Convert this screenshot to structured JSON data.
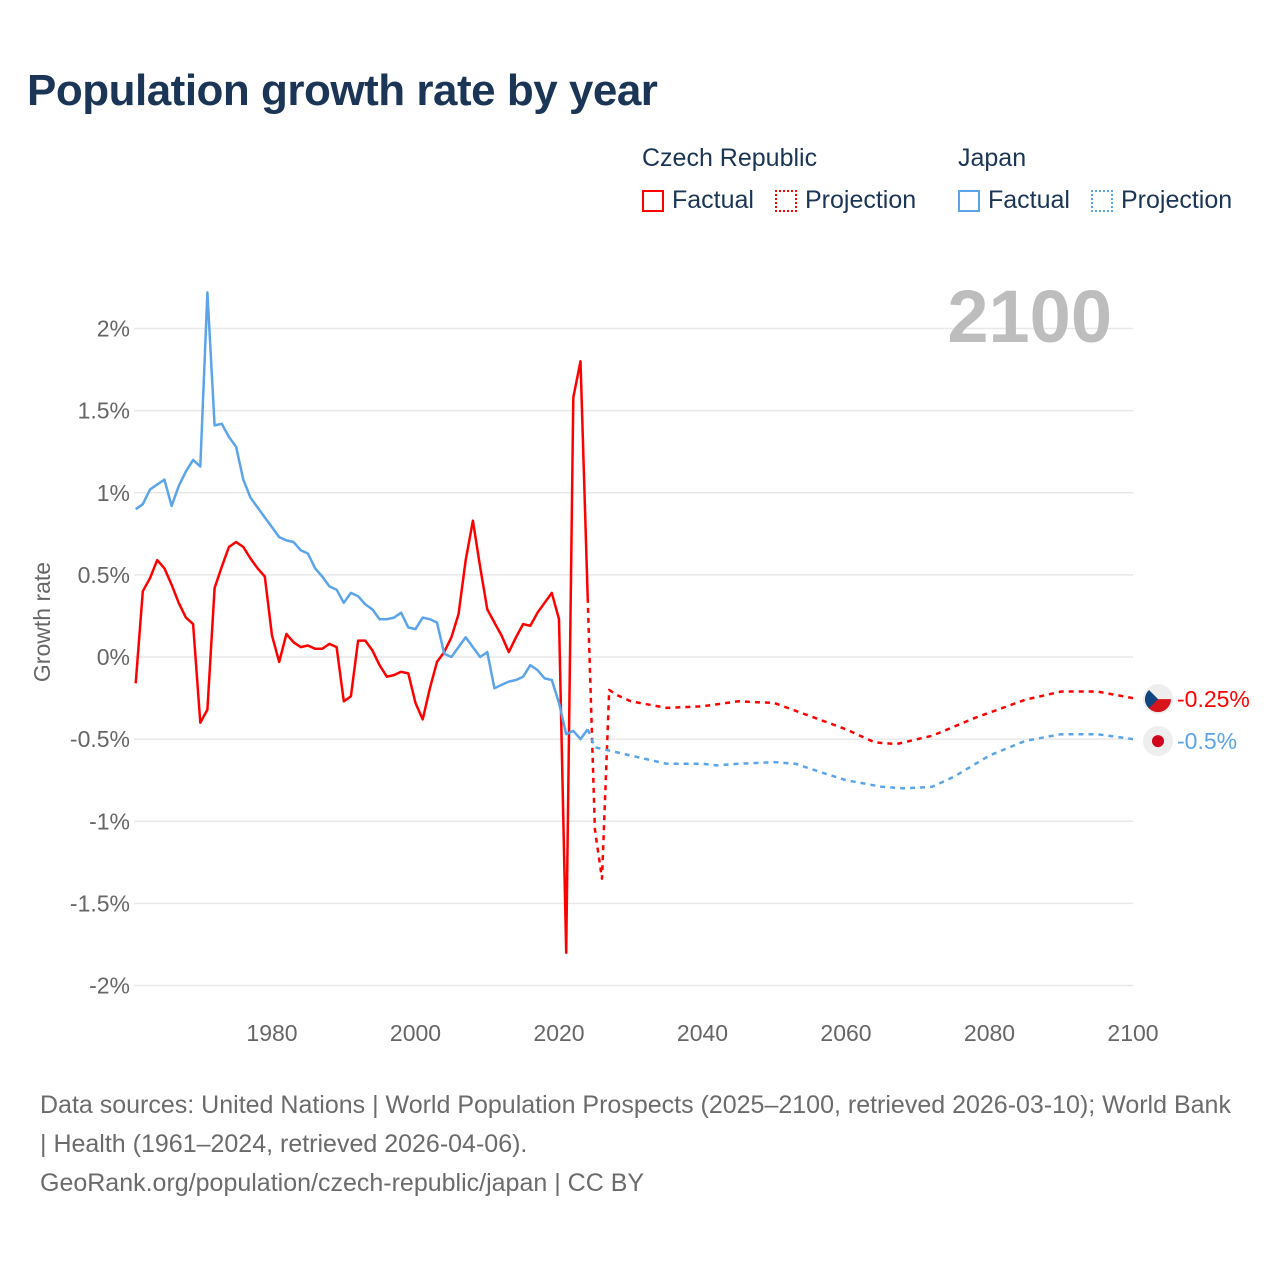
{
  "title": "Population growth rate by year",
  "legend": {
    "groups": [
      {
        "name": "Czech Republic",
        "factual": "Factual",
        "projection": "Projection",
        "color": "#ff0000"
      },
      {
        "name": "Japan",
        "factual": "Factual",
        "projection": "Projection",
        "color": "#5ba4ea"
      }
    ]
  },
  "year_display": "2100",
  "sources": {
    "line1": "Data sources: United Nations | World Population Prospects (2025–2100, retrieved 2026-03-10); World Bank | Health (1961–2024, retrieved 2026-04-06).",
    "line2": "GeoRank.org/population/czech-republic/japan | CC BY"
  },
  "chart_data": {
    "type": "line",
    "title": "Population growth rate by year",
    "xlabel": "",
    "ylabel": "Growth rate",
    "xlim": [
      1961,
      2100
    ],
    "ylim": [
      -2,
      2.2
    ],
    "xticks": [
      1980,
      2000,
      2020,
      2040,
      2060,
      2080,
      2100
    ],
    "xtick_labels": [
      "1980",
      "2000",
      "2020",
      "2040",
      "2060",
      "2080",
      "2100"
    ],
    "yticks": [
      2,
      1.5,
      1,
      0.5,
      0,
      -0.5,
      -1,
      -1.5,
      -2
    ],
    "ytick_labels": [
      "2%",
      "1.5%",
      "1%",
      "0.5%",
      "0%",
      "-0.5%",
      "-1%",
      "-1.5%",
      "-2%"
    ],
    "grid": true,
    "legend_position": "top-right",
    "series": [
      {
        "name": "Czech Republic",
        "kind": "Factual",
        "color": "#ff0000",
        "x": [
          1961,
          1962,
          1963,
          1964,
          1965,
          1966,
          1967,
          1968,
          1969,
          1970,
          1971,
          1972,
          1973,
          1974,
          1975,
          1976,
          1977,
          1978,
          1979,
          1980,
          1981,
          1982,
          1983,
          1984,
          1985,
          1986,
          1987,
          1988,
          1989,
          1990,
          1991,
          1992,
          1993,
          1994,
          1995,
          1996,
          1997,
          1998,
          1999,
          2000,
          2001,
          2002,
          2003,
          2004,
          2005,
          2006,
          2007,
          2008,
          2009,
          2010,
          2011,
          2012,
          2013,
          2014,
          2015,
          2016,
          2017,
          2018,
          2019,
          2020,
          2021,
          2022,
          2023,
          2024
        ],
        "y": [
          -0.16,
          0.4,
          0.48,
          0.59,
          0.54,
          0.44,
          0.33,
          0.24,
          0.2,
          -0.4,
          -0.32,
          0.42,
          0.55,
          0.67,
          0.7,
          0.67,
          0.6,
          0.54,
          0.49,
          0.13,
          -0.03,
          0.14,
          0.09,
          0.06,
          0.07,
          0.05,
          0.05,
          0.08,
          0.06,
          -0.27,
          -0.24,
          0.1,
          0.1,
          0.04,
          -0.05,
          -0.12,
          -0.11,
          -0.09,
          -0.1,
          -0.28,
          -0.38,
          -0.19,
          -0.03,
          0.03,
          0.12,
          0.26,
          0.59,
          0.83,
          0.55,
          0.29,
          0.21,
          0.13,
          0.03,
          0.12,
          0.2,
          0.19,
          0.27,
          0.33,
          0.39,
          0.23,
          -1.8,
          1.58,
          1.8,
          0.36
        ]
      },
      {
        "name": "Czech Republic",
        "kind": "Projection",
        "color": "#ff0000",
        "x": [
          2024,
          2025,
          2026,
          2027,
          2028,
          2030,
          2035,
          2040,
          2045,
          2050,
          2055,
          2060,
          2064,
          2067,
          2072,
          2078,
          2085,
          2090,
          2095,
          2100
        ],
        "y": [
          0.36,
          -1.05,
          -1.35,
          -0.2,
          -0.23,
          -0.27,
          -0.31,
          -0.3,
          -0.27,
          -0.28,
          -0.36,
          -0.44,
          -0.52,
          -0.53,
          -0.48,
          -0.37,
          -0.26,
          -0.21,
          -0.21,
          -0.25
        ]
      },
      {
        "name": "Japan",
        "kind": "Factual",
        "color": "#5ba4ea",
        "x": [
          1961,
          1962,
          1963,
          1964,
          1965,
          1966,
          1967,
          1968,
          1969,
          1970,
          1971,
          1972,
          1973,
          1974,
          1975,
          1976,
          1977,
          1978,
          1979,
          1980,
          1981,
          1982,
          1983,
          1984,
          1985,
          1986,
          1987,
          1988,
          1989,
          1990,
          1991,
          1992,
          1993,
          1994,
          1995,
          1996,
          1997,
          1998,
          1999,
          2000,
          2001,
          2002,
          2003,
          2004,
          2005,
          2006,
          2007,
          2008,
          2009,
          2010,
          2011,
          2012,
          2013,
          2014,
          2015,
          2016,
          2017,
          2018,
          2019,
          2020,
          2021,
          2022,
          2023,
          2024
        ],
        "y": [
          0.9,
          0.93,
          1.02,
          1.05,
          1.08,
          0.92,
          1.04,
          1.13,
          1.2,
          1.16,
          2.22,
          1.41,
          1.42,
          1.34,
          1.28,
          1.08,
          0.97,
          0.91,
          0.85,
          0.79,
          0.73,
          0.71,
          0.7,
          0.65,
          0.63,
          0.54,
          0.49,
          0.43,
          0.41,
          0.33,
          0.39,
          0.37,
          0.32,
          0.29,
          0.23,
          0.23,
          0.24,
          0.27,
          0.18,
          0.17,
          0.24,
          0.23,
          0.21,
          0.02,
          0.0,
          0.06,
          0.12,
          0.06,
          0.0,
          0.03,
          -0.19,
          -0.17,
          -0.15,
          -0.14,
          -0.12,
          -0.05,
          -0.08,
          -0.13,
          -0.14,
          -0.28,
          -0.47,
          -0.45,
          -0.5,
          -0.44
        ]
      },
      {
        "name": "Japan",
        "kind": "Projection",
        "color": "#5ba4ea",
        "x": [
          2024,
          2025,
          2030,
          2035,
          2040,
          2042,
          2045,
          2050,
          2053,
          2055,
          2060,
          2065,
          2068,
          2072,
          2075,
          2080,
          2085,
          2090,
          2095,
          2100
        ],
        "y": [
          -0.44,
          -0.55,
          -0.6,
          -0.65,
          -0.65,
          -0.66,
          -0.65,
          -0.64,
          -0.65,
          -0.68,
          -0.75,
          -0.79,
          -0.8,
          -0.79,
          -0.73,
          -0.6,
          -0.51,
          -0.47,
          -0.47,
          -0.5
        ]
      }
    ],
    "end_labels": [
      {
        "country": "Czech Republic",
        "text": "-0.25%",
        "value": -0.25,
        "color": "#ff0000",
        "icon": "czech-flag-icon"
      },
      {
        "country": "Japan",
        "text": "-0.5%",
        "value": -0.5,
        "color": "#5ba4ea",
        "icon": "japan-flag-icon"
      }
    ]
  }
}
